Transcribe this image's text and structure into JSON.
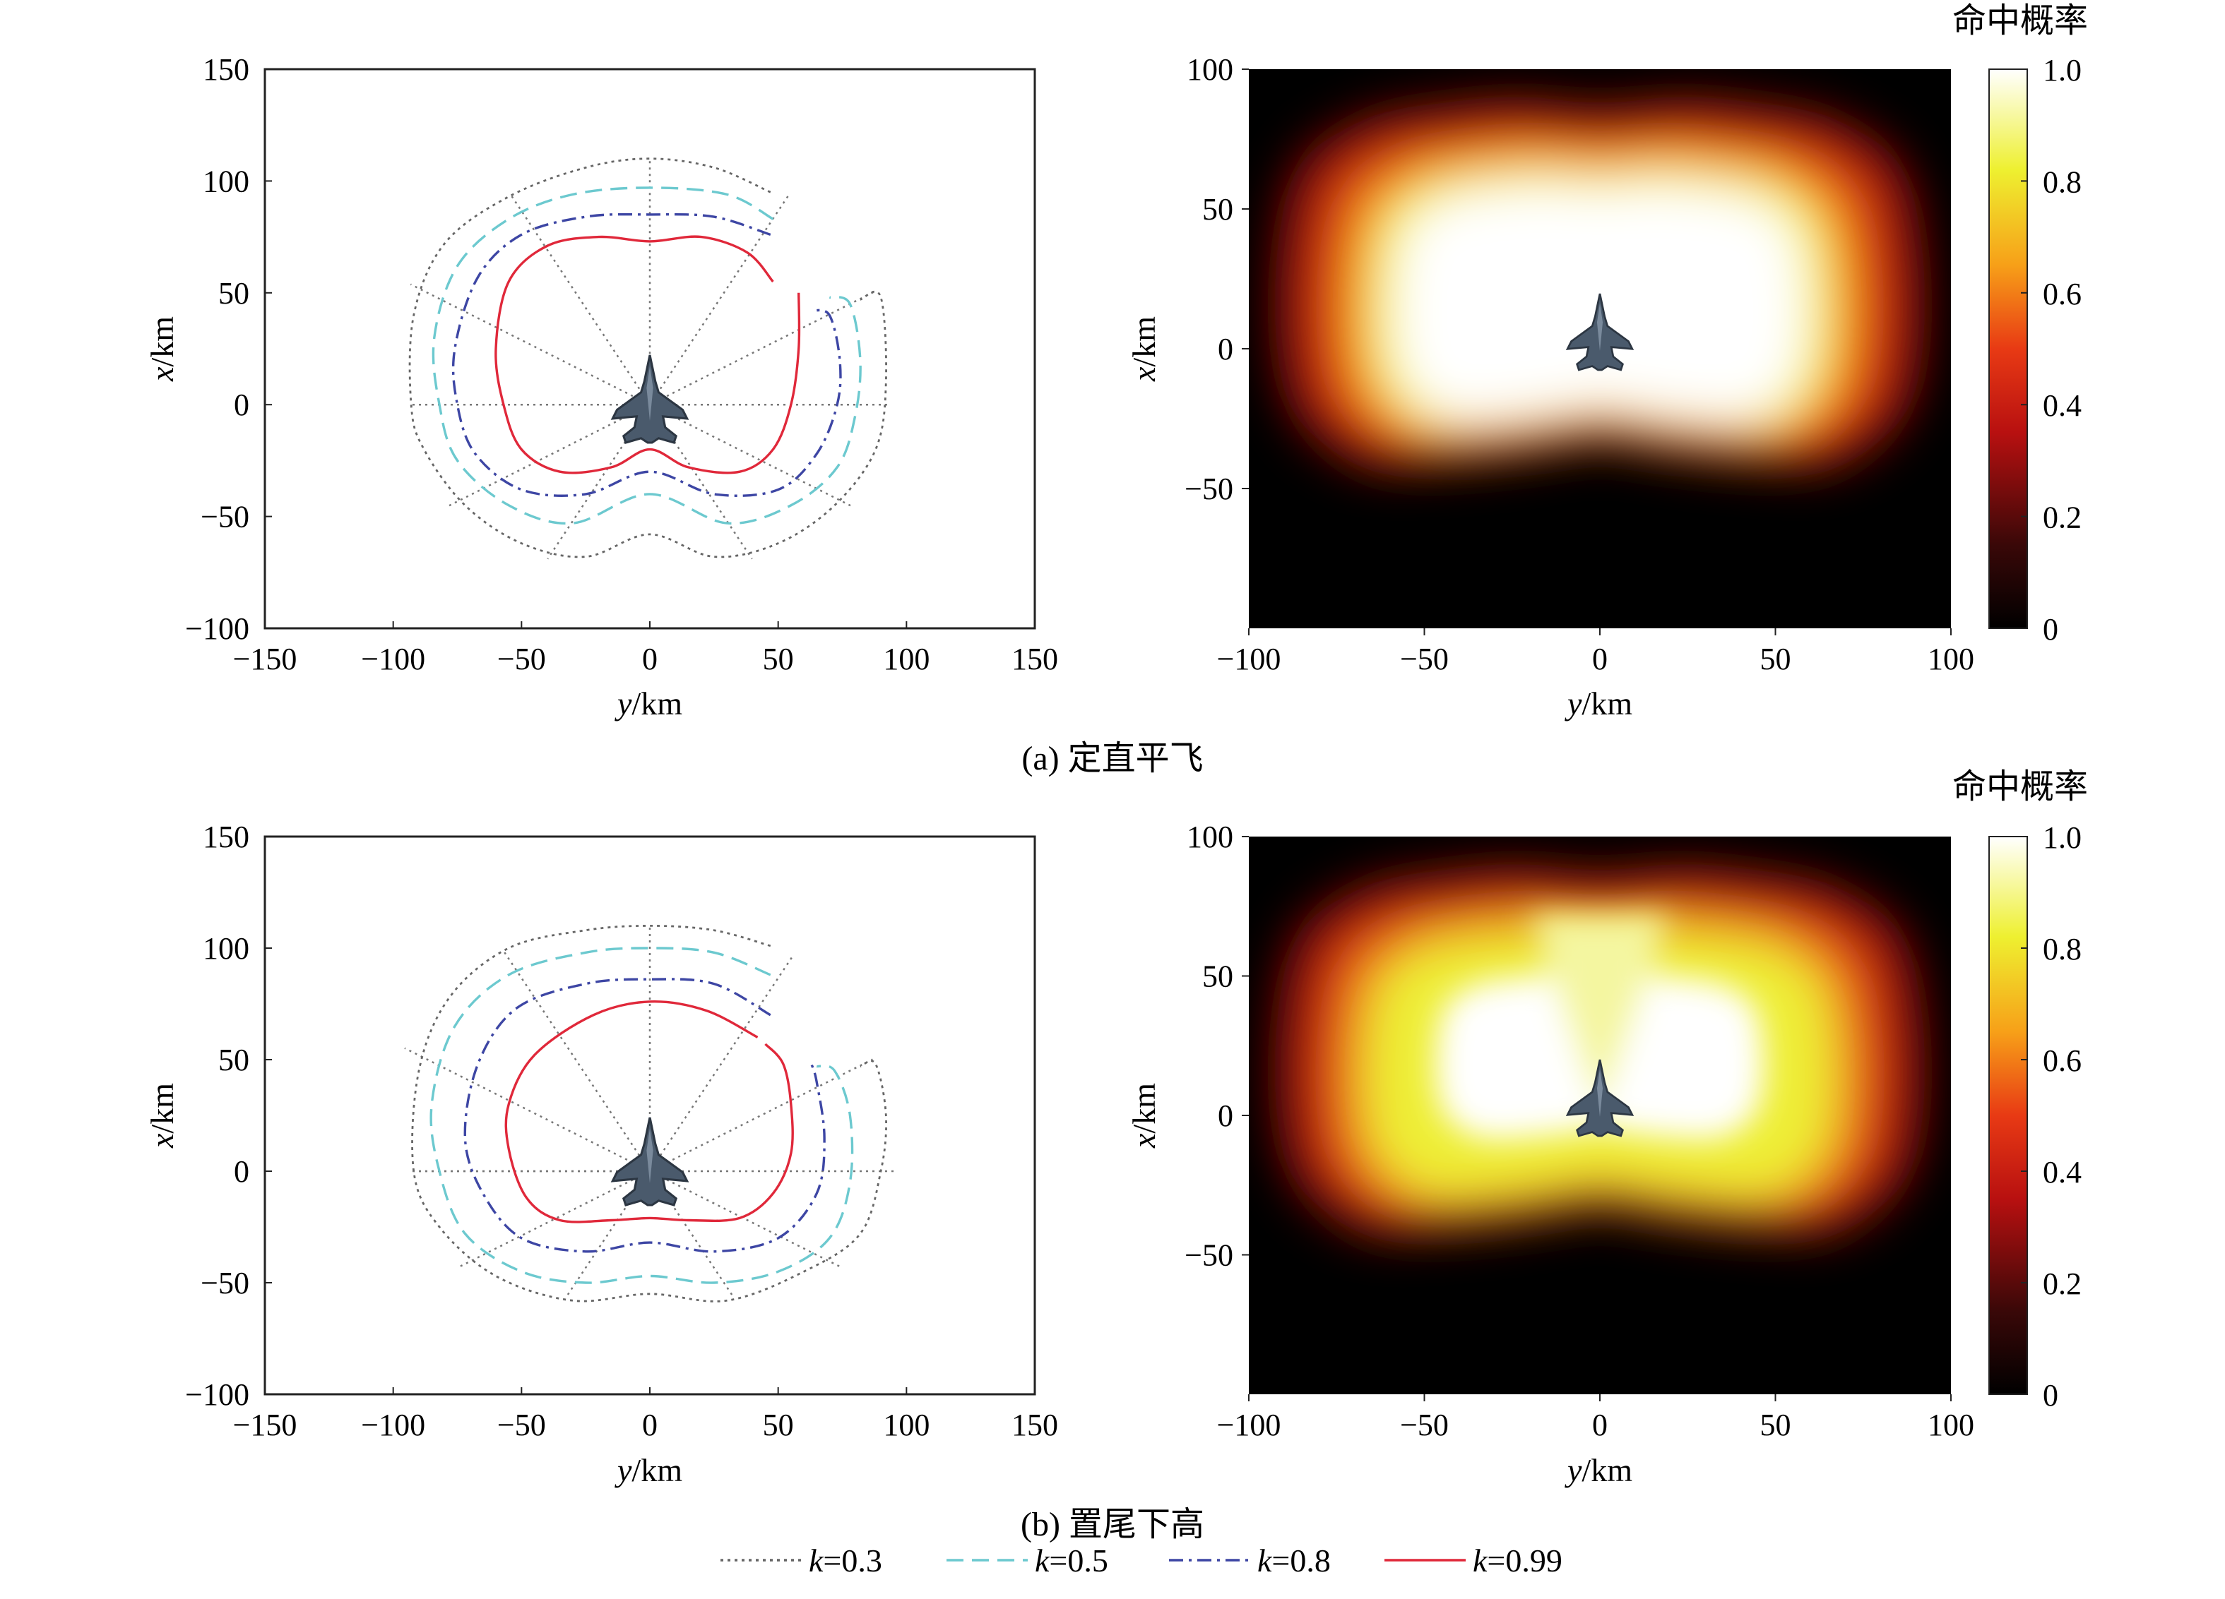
{
  "legend": {
    "placement": "bottom-center",
    "entries": [
      {
        "k_prefix": "k",
        "k_value": "=0.3",
        "color": "#666666",
        "dash": "4,6"
      },
      {
        "k_prefix": "k",
        "k_value": "=0.5",
        "color": "#6cc9cf",
        "dash": "24,12"
      },
      {
        "k_prefix": "k",
        "k_value": "=0.8",
        "color": "#3d46a4",
        "dash": "20,8,4,8"
      },
      {
        "k_prefix": "k",
        "k_value": "=0.99",
        "color": "#e0283a",
        "dash": ""
      }
    ]
  },
  "chart_data": [
    {
      "id": "a-line",
      "type": "line",
      "caption": "(a) 定直平飞",
      "xlabel_var": "y",
      "xlabel_unit": "/km",
      "ylabel_var": "x",
      "ylabel_unit": "/km",
      "xlim": [
        -150,
        150
      ],
      "ylim": [
        -100,
        150
      ],
      "xticks": [
        "−150",
        "−100",
        "−50",
        "0",
        "50",
        "100",
        "150"
      ],
      "yticks": [
        "−100",
        "−50",
        "0",
        "50",
        "100",
        "150"
      ],
      "radial_grid_angles_deg": [
        -180,
        -150,
        -120,
        -90,
        -60,
        -30,
        0,
        30,
        60,
        90,
        120,
        150
      ],
      "target_icon": "fighter-jet-icon",
      "series": [
        {
          "name": "k=0.3",
          "points": [
            [
              47,
              95
            ],
            [
              25,
              106
            ],
            [
              0,
              110
            ],
            [
              -25,
              106
            ],
            [
              -55,
              93
            ],
            [
              -80,
              72
            ],
            [
              -92,
              40
            ],
            [
              -93,
              0
            ],
            [
              -88,
              -20
            ],
            [
              -72,
              -45
            ],
            [
              -50,
              -62
            ],
            [
              -25,
              -68
            ],
            [
              0,
              -58
            ],
            [
              25,
              -68
            ],
            [
              50,
              -62
            ],
            [
              72,
              -45
            ],
            [
              88,
              -20
            ],
            [
              92,
              10
            ],
            [
              90,
              48
            ],
            [
              82,
              47
            ]
          ]
        },
        {
          "name": "k=0.5",
          "points": [
            [
              48,
              83
            ],
            [
              30,
              94
            ],
            [
              0,
              97
            ],
            [
              -30,
              94
            ],
            [
              -55,
              83
            ],
            [
              -75,
              62
            ],
            [
              -84,
              30
            ],
            [
              -82,
              0
            ],
            [
              -75,
              -25
            ],
            [
              -55,
              -45
            ],
            [
              -30,
              -53
            ],
            [
              0,
              -40
            ],
            [
              30,
              -53
            ],
            [
              55,
              -45
            ],
            [
              73,
              -28
            ],
            [
              80,
              -5
            ],
            [
              82,
              20
            ],
            [
              78,
              45
            ],
            [
              70,
              48
            ]
          ]
        },
        {
          "name": "k=0.8",
          "points": [
            [
              47,
              76
            ],
            [
              25,
              84
            ],
            [
              0,
              85
            ],
            [
              -25,
              84
            ],
            [
              -50,
              76
            ],
            [
              -67,
              57
            ],
            [
              -76,
              25
            ],
            [
              -75,
              0
            ],
            [
              -68,
              -22
            ],
            [
              -50,
              -38
            ],
            [
              -25,
              -40
            ],
            [
              0,
              -30
            ],
            [
              25,
              -40
            ],
            [
              50,
              -38
            ],
            [
              65,
              -22
            ],
            [
              73,
              0
            ],
            [
              74,
              20
            ],
            [
              70,
              40
            ],
            [
              63,
              42
            ]
          ]
        },
        {
          "name": "k=0.99",
          "points": [
            [
              48,
              55
            ],
            [
              38,
              68
            ],
            [
              20,
              75
            ],
            [
              0,
              73
            ],
            [
              -20,
              75
            ],
            [
              -40,
              71
            ],
            [
              -55,
              55
            ],
            [
              -60,
              25
            ],
            [
              -57,
              0
            ],
            [
              -50,
              -20
            ],
            [
              -35,
              -30
            ],
            [
              -15,
              -28
            ],
            [
              0,
              -20
            ],
            [
              15,
              -28
            ],
            [
              35,
              -30
            ],
            [
              48,
              -20
            ],
            [
              55,
              0
            ],
            [
              58,
              25
            ],
            [
              58,
              50
            ]
          ]
        }
      ]
    },
    {
      "id": "a-heat",
      "type": "heatmap",
      "xlabel_var": "y",
      "xlabel_unit": "/km",
      "ylabel_var": "x",
      "ylabel_unit": "/km",
      "xlim": [
        -100,
        100
      ],
      "ylim": [
        -100,
        100
      ],
      "xticks": [
        "−100",
        "−50",
        "0",
        "50",
        "100"
      ],
      "yticks": [
        "−50",
        "0",
        "50",
        "100"
      ],
      "colorbar_title": "命中概率",
      "colorbar_range": [
        0,
        1
      ],
      "colorbar_ticks": [
        "0",
        "0.2",
        "0.4",
        "0.6",
        "0.8",
        "1.0"
      ],
      "target_icon": "fighter-jet-icon",
      "region_boundary_km": [
        [
          0,
          72
        ],
        [
          20,
          74
        ],
        [
          38,
          72
        ],
        [
          55,
          68
        ],
        [
          70,
          55
        ],
        [
          75,
          30
        ],
        [
          75,
          0
        ],
        [
          70,
          -20
        ],
        [
          55,
          -33
        ],
        [
          35,
          -33
        ],
        [
          15,
          -30
        ],
        [
          0,
          -27
        ],
        [
          -15,
          -30
        ],
        [
          -35,
          -33
        ],
        [
          -55,
          -33
        ],
        [
          -70,
          -20
        ],
        [
          -75,
          0
        ],
        [
          -75,
          30
        ],
        [
          -70,
          55
        ],
        [
          -55,
          68
        ],
        [
          -38,
          72
        ],
        [
          -20,
          74
        ]
      ],
      "peak_probability": 1.0
    },
    {
      "id": "b-line",
      "type": "line",
      "caption": "(b) 置尾下高",
      "xlabel_var": "y",
      "xlabel_unit": "/km",
      "ylabel_var": "x",
      "ylabel_unit": "/km",
      "xlim": [
        -150,
        150
      ],
      "ylim": [
        -100,
        150
      ],
      "xticks": [
        "−150",
        "−100",
        "−50",
        "0",
        "50",
        "100",
        "150"
      ],
      "yticks": [
        "−100",
        "−50",
        "0",
        "50",
        "100",
        "150"
      ],
      "radial_grid_angles_deg": [
        -180,
        -150,
        -120,
        -90,
        -60,
        -30,
        0,
        30,
        60,
        90,
        120,
        150
      ],
      "target_icon": "fighter-jet-icon",
      "series": [
        {
          "name": "k=0.3",
          "points": [
            [
              47,
              101
            ],
            [
              25,
              108
            ],
            [
              0,
              110
            ],
            [
              -25,
              108
            ],
            [
              -55,
              100
            ],
            [
              -78,
              78
            ],
            [
              -90,
              45
            ],
            [
              -92,
              0
            ],
            [
              -82,
              -25
            ],
            [
              -60,
              -47
            ],
            [
              -30,
              -58
            ],
            [
              0,
              -55
            ],
            [
              30,
              -58
            ],
            [
              60,
              -45
            ],
            [
              82,
              -28
            ],
            [
              90,
              0
            ],
            [
              92,
              25
            ],
            [
              88,
              48
            ],
            [
              82,
              47
            ]
          ]
        },
        {
          "name": "k=0.5",
          "points": [
            [
              47,
              88
            ],
            [
              25,
              98
            ],
            [
              0,
              100
            ],
            [
              -25,
              98
            ],
            [
              -55,
              88
            ],
            [
              -76,
              65
            ],
            [
              -85,
              30
            ],
            [
              -82,
              0
            ],
            [
              -72,
              -28
            ],
            [
              -50,
              -45
            ],
            [
              -25,
              -50
            ],
            [
              0,
              -47
            ],
            [
              25,
              -50
            ],
            [
              50,
              -45
            ],
            [
              70,
              -30
            ],
            [
              78,
              -5
            ],
            [
              78,
              25
            ],
            [
              72,
              45
            ],
            [
              65,
              47
            ]
          ]
        },
        {
          "name": "k=0.8",
          "points": [
            [
              47,
              70
            ],
            [
              25,
              84
            ],
            [
              0,
              86
            ],
            [
              -25,
              84
            ],
            [
              -52,
              73
            ],
            [
              -67,
              48
            ],
            [
              -72,
              15
            ],
            [
              -65,
              -10
            ],
            [
              -50,
              -30
            ],
            [
              -25,
              -36
            ],
            [
              0,
              -32
            ],
            [
              25,
              -36
            ],
            [
              50,
              -30
            ],
            [
              65,
              -10
            ],
            [
              68,
              15
            ],
            [
              65,
              40
            ],
            [
              63,
              48
            ]
          ]
        },
        {
          "name": "k=0.99",
          "points": [
            [
              42,
              60
            ],
            [
              22,
              72
            ],
            [
              0,
              76
            ],
            [
              -22,
              70
            ],
            [
              -45,
              52
            ],
            [
              -55,
              30
            ],
            [
              -55,
              10
            ],
            [
              -48,
              -12
            ],
            [
              -35,
              -22
            ],
            [
              -15,
              -22
            ],
            [
              0,
              -21
            ],
            [
              15,
              -22
            ],
            [
              35,
              -21
            ],
            [
              48,
              -10
            ],
            [
              55,
              8
            ],
            [
              55,
              30
            ],
            [
              52,
              48
            ],
            [
              45,
              57
            ]
          ]
        }
      ]
    },
    {
      "id": "b-heat",
      "type": "heatmap",
      "xlabel_var": "y",
      "xlabel_unit": "/km",
      "ylabel_var": "x",
      "ylabel_unit": "/km",
      "xlim": [
        -100,
        100
      ],
      "ylim": [
        -100,
        100
      ],
      "xticks": [
        "−100",
        "−50",
        "0",
        "50",
        "100"
      ],
      "yticks": [
        "−50",
        "0",
        "50",
        "100"
      ],
      "colorbar_title": "命中概率",
      "colorbar_range": [
        0,
        1
      ],
      "colorbar_ticks": [
        "0",
        "0.2",
        "0.4",
        "0.6",
        "0.8",
        "1.0"
      ],
      "target_icon": "fighter-jet-icon",
      "region_boundary_km": [
        [
          0,
          72
        ],
        [
          20,
          74
        ],
        [
          38,
          72
        ],
        [
          55,
          68
        ],
        [
          70,
          55
        ],
        [
          75,
          30
        ],
        [
          75,
          0
        ],
        [
          70,
          -20
        ],
        [
          55,
          -33
        ],
        [
          35,
          -33
        ],
        [
          15,
          -30
        ],
        [
          0,
          -27
        ],
        [
          -15,
          -30
        ],
        [
          -35,
          -33
        ],
        [
          -55,
          -33
        ],
        [
          -70,
          -20
        ],
        [
          -75,
          0
        ],
        [
          -75,
          30
        ],
        [
          -70,
          55
        ],
        [
          -55,
          68
        ],
        [
          -38,
          72
        ],
        [
          -20,
          74
        ]
      ],
      "peak_probability": 1.0
    }
  ]
}
